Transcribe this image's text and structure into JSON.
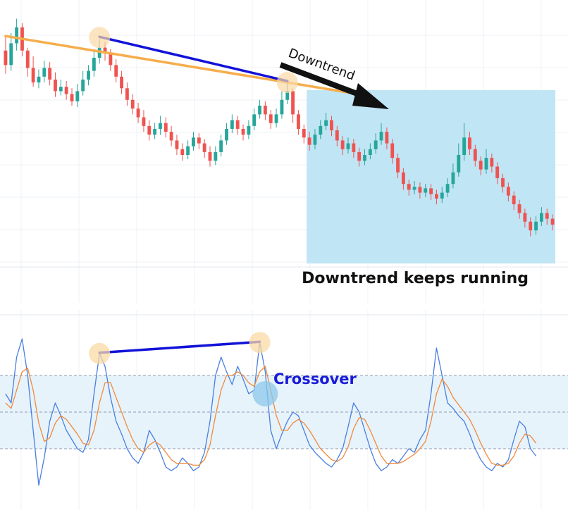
{
  "annotations": {
    "downtrend_arrow_label": "Downtrend",
    "continuation_label": "Downtrend keeps running",
    "crossover_label": "Crossover"
  },
  "colors": {
    "bull_candle": "#26a69a",
    "bear_candle": "#ef5350",
    "trend_line_outer": "#f6ad4b",
    "trend_line_inner": "#1212d8",
    "divergence_line": "#1212d8",
    "continuation_zone": "#bde4f4",
    "oscillator_band": "#e7f3fb",
    "oscillator_fast": "#4a7fe0",
    "oscillator_slow": "#f08a3c",
    "highlight_circle": "#f9d9a4",
    "crossover_circle": "#8cc8ea",
    "crossover_text": "#1a1ad8",
    "arrow": "#111111"
  },
  "chart_data": [
    {
      "type": "candlestick",
      "title": "",
      "description_series": "price",
      "candles": [
        [
          340,
          330,
          350,
          324
        ],
        [
          330,
          345,
          352,
          326
        ],
        [
          345,
          356,
          362,
          340
        ],
        [
          356,
          340,
          359,
          336
        ],
        [
          340,
          328,
          342,
          322
        ],
        [
          328,
          318,
          336,
          315
        ],
        [
          318,
          322,
          327,
          314
        ],
        [
          322,
          328,
          333,
          318
        ],
        [
          328,
          320,
          332,
          316
        ],
        [
          320,
          312,
          325,
          308
        ],
        [
          312,
          315,
          320,
          309
        ],
        [
          315,
          310,
          319,
          306
        ],
        [
          310,
          305,
          314,
          302
        ],
        [
          305,
          312,
          317,
          301
        ],
        [
          312,
          320,
          326,
          309
        ],
        [
          320,
          326,
          330,
          316
        ],
        [
          326,
          335,
          340,
          322
        ],
        [
          335,
          342,
          348,
          331
        ],
        [
          342,
          338,
          346,
          333
        ],
        [
          338,
          330,
          341,
          326
        ],
        [
          330,
          322,
          334,
          318
        ],
        [
          322,
          314,
          326,
          310
        ],
        [
          314,
          306,
          318,
          302
        ],
        [
          306,
          300,
          310,
          296
        ],
        [
          300,
          294,
          304,
          290
        ],
        [
          294,
          288,
          299,
          284
        ],
        [
          288,
          282,
          292,
          278
        ],
        [
          282,
          286,
          290,
          279
        ],
        [
          286,
          290,
          295,
          282
        ],
        [
          290,
          284,
          294,
          280
        ],
        [
          284,
          278,
          288,
          274
        ],
        [
          278,
          272,
          282,
          268
        ],
        [
          272,
          268,
          276,
          264
        ],
        [
          268,
          274,
          278,
          265
        ],
        [
          274,
          280,
          284,
          271
        ],
        [
          280,
          276,
          283,
          272
        ],
        [
          276,
          270,
          279,
          266
        ],
        [
          270,
          264,
          274,
          260
        ],
        [
          264,
          270,
          274,
          261
        ],
        [
          270,
          278,
          282,
          267
        ],
        [
          278,
          286,
          290,
          275
        ],
        [
          286,
          292,
          296,
          283
        ],
        [
          292,
          286,
          295,
          282
        ],
        [
          286,
          282,
          289,
          278
        ],
        [
          282,
          288,
          292,
          279
        ],
        [
          288,
          296,
          300,
          285
        ],
        [
          296,
          302,
          306,
          293
        ],
        [
          302,
          296,
          305,
          292
        ],
        [
          296,
          290,
          299,
          286
        ],
        [
          290,
          296,
          300,
          287
        ],
        [
          296,
          306,
          312,
          293
        ],
        [
          306,
          312,
          318,
          303
        ],
        [
          312,
          296,
          314,
          290
        ],
        [
          296,
          286,
          299,
          282
        ],
        [
          286,
          280,
          289,
          276
        ],
        [
          280,
          275,
          284,
          271
        ],
        [
          275,
          282,
          286,
          272
        ],
        [
          282,
          288,
          292,
          279
        ],
        [
          288,
          292,
          297,
          285
        ],
        [
          292,
          285,
          295,
          281
        ],
        [
          285,
          278,
          288,
          274
        ],
        [
          278,
          272,
          281,
          268
        ],
        [
          272,
          276,
          280,
          269
        ],
        [
          276,
          270,
          279,
          266
        ],
        [
          270,
          264,
          273,
          260
        ],
        [
          264,
          268,
          272,
          261
        ],
        [
          268,
          272,
          276,
          265
        ],
        [
          272,
          278,
          283,
          269
        ],
        [
          278,
          284,
          290,
          275
        ],
        [
          284,
          276,
          287,
          272
        ],
        [
          276,
          266,
          279,
          262
        ],
        [
          266,
          256,
          269,
          252
        ],
        [
          256,
          248,
          259,
          244
        ],
        [
          248,
          244,
          251,
          240
        ],
        [
          244,
          246,
          250,
          241
        ],
        [
          246,
          242,
          249,
          238
        ],
        [
          242,
          245,
          248,
          239
        ],
        [
          245,
          241,
          248,
          237
        ],
        [
          241,
          238,
          244,
          234
        ],
        [
          238,
          242,
          246,
          235
        ],
        [
          242,
          248,
          252,
          239
        ],
        [
          248,
          256,
          262,
          245
        ],
        [
          256,
          268,
          276,
          253
        ],
        [
          268,
          280,
          290,
          264
        ],
        [
          280,
          272,
          284,
          268
        ],
        [
          272,
          264,
          275,
          260
        ],
        [
          264,
          258,
          267,
          254
        ],
        [
          258,
          266,
          272,
          255
        ],
        [
          266,
          260,
          269,
          256
        ],
        [
          260,
          252,
          263,
          248
        ],
        [
          252,
          246,
          255,
          242
        ],
        [
          246,
          240,
          249,
          236
        ],
        [
          240,
          234,
          243,
          230
        ],
        [
          234,
          228,
          237,
          224
        ],
        [
          228,
          222,
          231,
          218
        ],
        [
          222,
          216,
          225,
          212
        ],
        [
          216,
          222,
          226,
          213
        ],
        [
          222,
          228,
          232,
          219
        ],
        [
          228,
          224,
          231,
          220
        ],
        [
          224,
          220,
          227,
          216
        ]
      ],
      "ylim": [
        200,
        370
      ]
    },
    {
      "type": "line",
      "title": "",
      "series": [
        {
          "values": [
            60,
            55,
            80,
            90,
            70,
            40,
            10,
            25,
            45,
            55,
            48,
            40,
            35,
            30,
            28,
            35,
            60,
            82,
            75,
            58,
            45,
            38,
            30,
            25,
            22,
            28,
            40,
            35,
            28,
            20,
            18,
            20,
            25,
            22,
            18,
            20,
            28,
            45,
            70,
            80,
            72,
            65,
            75,
            68,
            60,
            62,
            88,
            72,
            40,
            30,
            38,
            45,
            50,
            48,
            40,
            32,
            28,
            25,
            22,
            20,
            24,
            30,
            42,
            55,
            50,
            40,
            30,
            22,
            18,
            20,
            24,
            22,
            26,
            30,
            28,
            35,
            40,
            60,
            85,
            70,
            55,
            52,
            48,
            45,
            38,
            30,
            24,
            20,
            18,
            22,
            20,
            24,
            35,
            45,
            42,
            30,
            26
          ]
        },
        {
          "values": [
            55,
            52,
            62,
            72,
            74,
            62,
            44,
            34,
            36,
            44,
            48,
            46,
            42,
            38,
            33,
            32,
            40,
            55,
            66,
            66,
            58,
            50,
            42,
            35,
            30,
            28,
            32,
            34,
            32,
            28,
            24,
            22,
            22,
            22,
            21,
            21,
            24,
            32,
            48,
            62,
            70,
            70,
            72,
            70,
            66,
            64,
            72,
            75,
            62,
            48,
            40,
            40,
            44,
            46,
            44,
            40,
            35,
            30,
            27,
            24,
            23,
            25,
            31,
            41,
            47,
            46,
            40,
            33,
            26,
            22,
            22,
            22,
            23,
            25,
            27,
            30,
            34,
            45,
            60,
            68,
            64,
            58,
            54,
            50,
            46,
            40,
            33,
            27,
            22,
            21,
            21,
            22,
            26,
            33,
            38,
            37,
            33
          ]
        }
      ],
      "ylim": [
        0,
        100
      ],
      "reference_levels": [
        30,
        50,
        70
      ]
    }
  ]
}
